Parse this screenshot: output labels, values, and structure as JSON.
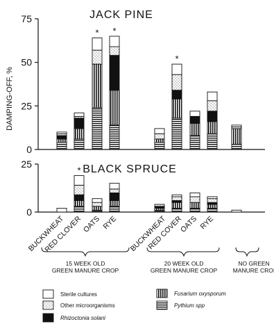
{
  "chart_data": [
    {
      "type": "bar",
      "stacked": true,
      "title": "JACK PINE",
      "ylabel": "DAMPING-OFF, %",
      "ylim": [
        0,
        75
      ],
      "yticks": [
        "0",
        "25",
        "50",
        "75"
      ],
      "significance_marker": "*",
      "stack_order": [
        "Pythium spp",
        "Fusarium oxysporum",
        "Rhizoctonia solani",
        "Other microorganisms",
        "Sterile cultures"
      ],
      "groups": [
        {
          "key": "15wk",
          "label": "15 WEEK OLD GREEN MANURE CROP",
          "bars": [
            {
              "category": "BUCKWHEAT",
              "segments": [
                4,
                2,
                2,
                1,
                1
              ],
              "star": false
            },
            {
              "category": "RED CLOVER",
              "segments": [
                6,
                6,
                6,
                1,
                2
              ],
              "star": false
            },
            {
              "category": "OATS",
              "segments": [
                24,
                25,
                0,
                8,
                7
              ],
              "star": true
            },
            {
              "category": "RYE",
              "segments": [
                14,
                20,
                20,
                5,
                6
              ],
              "star": true
            }
          ]
        },
        {
          "key": "20wk",
          "label": "20 WEEK OLD GREEN MANURE CROP",
          "bars": [
            {
              "category": "BUCKWHEAT",
              "segments": [
                4,
                2,
                0,
                3,
                3
              ],
              "star": false
            },
            {
              "category": "RED COVER",
              "segments": [
                18,
                11,
                5,
                9,
                6
              ],
              "star": true
            },
            {
              "category": "OATS",
              "segments": [
                8,
                7,
                4,
                0,
                3
              ],
              "star": false
            },
            {
              "category": "RYE",
              "segments": [
                9,
                7,
                6,
                6,
                5
              ],
              "star": false
            }
          ]
        },
        {
          "key": "none",
          "label": "NO GREEN MANURE CROP",
          "bars": [
            {
              "category": "",
              "segments": [
                3,
                9,
                0,
                1,
                1
              ],
              "star": false
            }
          ]
        }
      ]
    },
    {
      "type": "bar",
      "stacked": true,
      "title": "BLACK SPRUCE",
      "ylim": [
        0,
        25
      ],
      "yticks": [
        "0",
        "25"
      ],
      "significance_marker": "*",
      "stack_order": [
        "Pythium spp",
        "Fusarium oxysporum",
        "Rhizoctonia solani",
        "Other microorganisms",
        "Sterile cultures"
      ],
      "groups": [
        {
          "key": "15wk",
          "bars": [
            {
              "category": "BUCKWHEAT",
              "segments": [
                0,
                0,
                0,
                0,
                2
              ],
              "star": false
            },
            {
              "category": "RED CLOVER",
              "segments": [
                3,
                3,
                3,
                5,
                5
              ],
              "star": true
            },
            {
              "category": "OATS",
              "segments": [
                1,
                2,
                0,
                2,
                2
              ],
              "star": false
            },
            {
              "category": "RYE",
              "segments": [
                3,
                3,
                4,
                2,
                3
              ],
              "star": false
            }
          ]
        },
        {
          "key": "20wk",
          "bars": [
            {
              "category": "BUCKWHEAT",
              "segments": [
                1,
                1,
                1,
                1,
                0
              ],
              "star": false
            },
            {
              "category": "RED COVER",
              "segments": [
                2,
                3,
                1,
                2,
                1
              ],
              "star": false
            },
            {
              "category": "OATS",
              "segments": [
                2,
                3,
                0,
                3,
                2
              ],
              "star": false
            },
            {
              "category": "RYE",
              "segments": [
                2,
                2,
                1,
                2,
                1
              ],
              "star": false
            }
          ]
        },
        {
          "key": "none",
          "bars": [
            {
              "category": "",
              "segments": [
                0,
                0,
                0,
                0,
                1
              ],
              "star": false
            }
          ]
        }
      ]
    }
  ],
  "legend": [
    {
      "key": "sterile",
      "label": "Sterile cultures",
      "pattern": "blank"
    },
    {
      "key": "other",
      "label": "Other microorganisms",
      "pattern": "dots"
    },
    {
      "key": "rhizoctonia",
      "label": "Rhizoctonia solani",
      "pattern": "solid"
    },
    {
      "key": "fusarium",
      "label": "Fusarium oxysporum",
      "pattern": "vertical"
    },
    {
      "key": "pythium",
      "label": "Pythium spp",
      "pattern": "horizontal"
    }
  ],
  "x_categories": [
    "BUCKWHEAT",
    "RED CLOVER",
    "OATS",
    "RYE",
    "BUCKWHEAT",
    "RED COVER",
    "OATS",
    "RYE"
  ],
  "group_labels": [
    {
      "line1": "15 WEEK OLD",
      "line2": "GREEN MANURE CROP"
    },
    {
      "line1": "20 WEEK OLD",
      "line2": "GREEN MANURE CROP"
    },
    {
      "line1": "NO GREEN",
      "line2": "MANURE CROI"
    }
  ]
}
